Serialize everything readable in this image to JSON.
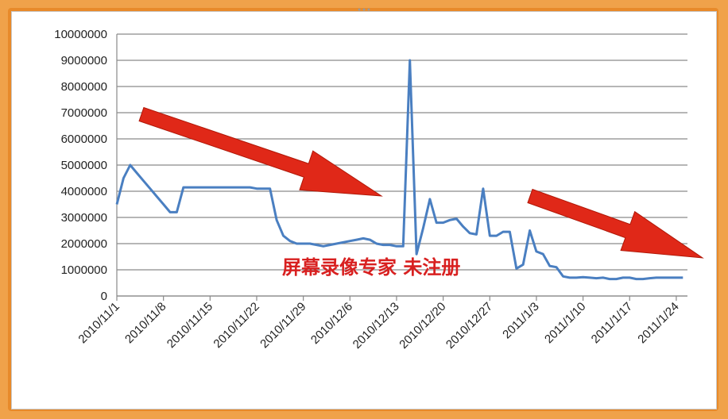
{
  "watermark": "屏幕录像专家  未注册",
  "chart_data": {
    "type": "line",
    "title": "",
    "xlabel": "",
    "ylabel": "",
    "ylim": [
      0,
      10000000
    ],
    "yticks": [
      "10000000",
      "9000000",
      "8000000",
      "7000000",
      "6000000",
      "5000000",
      "4000000",
      "3000000",
      "2000000",
      "1000000",
      "0"
    ],
    "xticks": [
      "2010/11/1",
      "2010/11/8",
      "2010/11/15",
      "2010/11/22",
      "2010/11/29",
      "2010/12/6",
      "2010/12/13",
      "2010/12/20",
      "2010/12/27",
      "2011/1/3",
      "2011/1/10",
      "2011/1/17",
      "2011/1/24"
    ],
    "grid": true,
    "line_color": "#4a7fc1",
    "arrow_color": "#e02818",
    "series": [
      {
        "x": [
          "2010/11/1",
          "2010/11/2",
          "2010/11/3",
          "2010/11/4",
          "2010/11/5",
          "2010/11/6",
          "2010/11/7",
          "2010/11/8",
          "2010/11/9",
          "2010/11/10",
          "2010/11/11",
          "2010/11/12",
          "2010/11/13",
          "2010/11/14",
          "2010/11/15",
          "2010/11/16",
          "2010/11/17",
          "2010/11/18",
          "2010/11/19",
          "2010/11/20",
          "2010/11/21",
          "2010/11/22",
          "2010/11/23",
          "2010/11/24",
          "2010/11/25",
          "2010/11/26",
          "2010/11/27",
          "2010/11/28",
          "2010/11/29",
          "2010/11/30",
          "2010/12/1",
          "2010/12/2",
          "2010/12/3",
          "2010/12/4",
          "2010/12/5",
          "2010/12/6",
          "2010/12/7",
          "2010/12/8",
          "2010/12/9",
          "2010/12/10",
          "2010/12/11",
          "2010/12/12",
          "2010/12/13",
          "2010/12/14",
          "2010/12/15",
          "2010/12/16",
          "2010/12/17",
          "2010/12/18",
          "2010/12/19",
          "2010/12/20",
          "2010/12/21",
          "2010/12/22",
          "2010/12/23",
          "2010/12/24",
          "2010/12/25",
          "2010/12/26",
          "2010/12/27",
          "2010/12/28",
          "2010/12/29",
          "2010/12/30",
          "2010/12/31",
          "2011/1/1",
          "2011/1/2",
          "2011/1/3",
          "2011/1/4",
          "2011/1/5",
          "2011/1/6",
          "2011/1/7",
          "2011/1/8",
          "2011/1/9",
          "2011/1/10",
          "2011/1/11",
          "2011/1/12",
          "2011/1/13",
          "2011/1/14",
          "2011/1/15",
          "2011/1/16",
          "2011/1/17",
          "2011/1/18",
          "2011/1/19",
          "2011/1/20",
          "2011/1/21",
          "2011/1/22",
          "2011/1/23",
          "2011/1/24",
          "2011/1/25"
        ],
        "values": [
          3500000,
          4500000,
          5000000,
          4700000,
          4400000,
          4100000,
          3800000,
          3500000,
          3200000,
          3200000,
          4150000,
          4150000,
          4150000,
          4150000,
          4150000,
          4150000,
          4150000,
          4150000,
          4150000,
          4150000,
          4150000,
          4100000,
          4100000,
          4100000,
          2900000,
          2300000,
          2100000,
          2000000,
          2000000,
          2000000,
          1950000,
          1900000,
          1950000,
          2000000,
          2050000,
          2100000,
          2150000,
          2200000,
          2150000,
          2000000,
          1950000,
          1950000,
          1900000,
          1900000,
          9000000,
          1600000,
          2600000,
          3700000,
          2800000,
          2800000,
          2900000,
          2950000,
          2650000,
          2400000,
          2350000,
          4100000,
          2300000,
          2300000,
          2450000,
          2450000,
          1050000,
          1200000,
          2500000,
          1700000,
          1600000,
          1150000,
          1100000,
          750000,
          700000,
          700000,
          720000,
          700000,
          680000,
          700000,
          650000,
          650000,
          700000,
          700000,
          650000,
          650000,
          680000,
          700000,
          700000,
          700000,
          700000,
          700000
        ]
      }
    ]
  }
}
